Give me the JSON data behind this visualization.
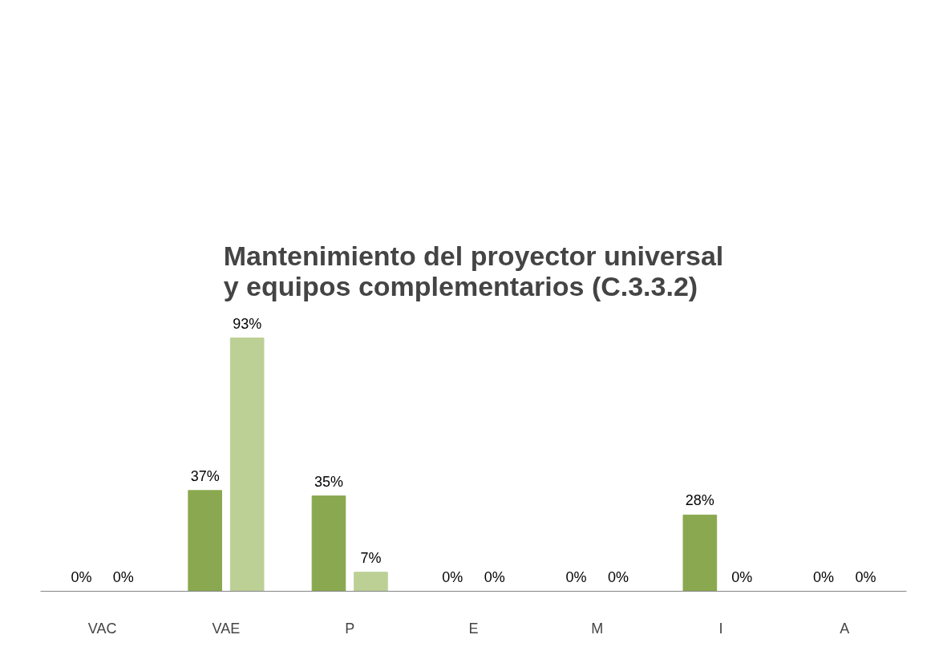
{
  "chart_data": {
    "type": "bar",
    "title": "Mantenimiento del proyector universal y equipos complementarios (C.3.3.2)",
    "categories": [
      "VAC",
      "VAE",
      "P",
      "E",
      "M",
      "I",
      "A"
    ],
    "series": [
      {
        "color": "#8aa84f",
        "values": [
          0,
          37,
          35,
          0,
          0,
          28,
          0
        ],
        "value_labels": [
          "0%",
          "37%",
          "35%",
          "0%",
          "0%",
          "28%",
          "0%"
        ]
      },
      {
        "color": "#bcd096",
        "values": [
          0,
          93,
          7,
          0,
          0,
          0,
          0
        ],
        "value_labels": [
          "0%",
          "93%",
          "7%",
          "0%",
          "0%",
          "0%",
          "0%"
        ]
      }
    ],
    "grid": false
  }
}
